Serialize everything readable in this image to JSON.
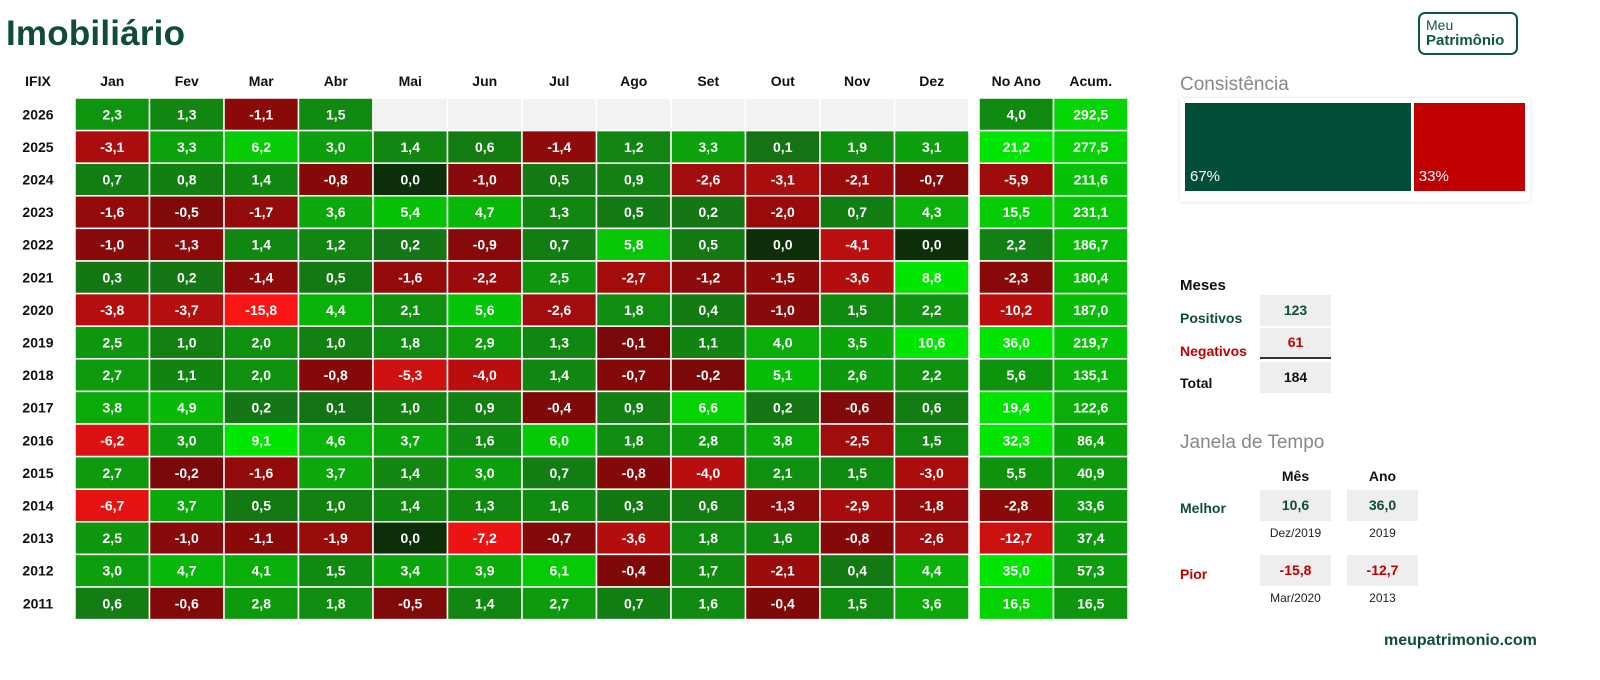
{
  "title": "Imobiliário",
  "logo": {
    "line1": "Meu",
    "line2": "Patrimônio"
  },
  "chart_data": {
    "type": "heatmap",
    "corner_label": "IFIX",
    "columns": [
      "Jan",
      "Fev",
      "Mar",
      "Abr",
      "Mai",
      "Jun",
      "Jul",
      "Ago",
      "Set",
      "Out",
      "Nov",
      "Dez"
    ],
    "summary_columns": [
      "No Ano",
      "Acum."
    ],
    "rows": [
      {
        "year": "2026",
        "values": [
          "2,3",
          "1,3",
          "-1,1",
          "1,5",
          null,
          null,
          null,
          null,
          null,
          null,
          null,
          null
        ],
        "no_ano": "4,0",
        "acum": "292,5"
      },
      {
        "year": "2025",
        "values": [
          "-3,1",
          "3,3",
          "6,2",
          "3,0",
          "1,4",
          "0,6",
          "-1,4",
          "1,2",
          "3,3",
          "0,1",
          "1,9",
          "3,1"
        ],
        "no_ano": "21,2",
        "acum": "277,5"
      },
      {
        "year": "2024",
        "values": [
          "0,7",
          "0,8",
          "1,4",
          "-0,8",
          "0,0",
          "-1,0",
          "0,5",
          "0,9",
          "-2,6",
          "-3,1",
          "-2,1",
          "-0,7"
        ],
        "no_ano": "-5,9",
        "acum": "211,6"
      },
      {
        "year": "2023",
        "values": [
          "-1,6",
          "-0,5",
          "-1,7",
          "3,6",
          "5,4",
          "4,7",
          "1,3",
          "0,5",
          "0,2",
          "-2,0",
          "0,7",
          "4,3"
        ],
        "no_ano": "15,5",
        "acum": "231,1"
      },
      {
        "year": "2022",
        "values": [
          "-1,0",
          "-1,3",
          "1,4",
          "1,2",
          "0,2",
          "-0,9",
          "0,7",
          "5,8",
          "0,5",
          "0,0",
          "-4,1",
          "0,0"
        ],
        "no_ano": "2,2",
        "acum": "186,7"
      },
      {
        "year": "2021",
        "values": [
          "0,3",
          "0,2",
          "-1,4",
          "0,5",
          "-1,6",
          "-2,2",
          "2,5",
          "-2,7",
          "-1,2",
          "-1,5",
          "-3,6",
          "8,8"
        ],
        "no_ano": "-2,3",
        "acum": "180,4"
      },
      {
        "year": "2020",
        "values": [
          "-3,8",
          "-3,7",
          "-15,8",
          "4,4",
          "2,1",
          "5,6",
          "-2,6",
          "1,8",
          "0,4",
          "-1,0",
          "1,5",
          "2,2"
        ],
        "no_ano": "-10,2",
        "acum": "187,0"
      },
      {
        "year": "2019",
        "values": [
          "2,5",
          "1,0",
          "2,0",
          "1,0",
          "1,8",
          "2,9",
          "1,3",
          "-0,1",
          "1,1",
          "4,0",
          "3,5",
          "10,6"
        ],
        "no_ano": "36,0",
        "acum": "219,7"
      },
      {
        "year": "2018",
        "values": [
          "2,7",
          "1,1",
          "2,0",
          "-0,8",
          "-5,3",
          "-4,0",
          "1,4",
          "-0,7",
          "-0,2",
          "5,1",
          "2,6",
          "2,2"
        ],
        "no_ano": "5,6",
        "acum": "135,1"
      },
      {
        "year": "2017",
        "values": [
          "3,8",
          "4,9",
          "0,2",
          "0,1",
          "1,0",
          "0,9",
          "-0,4",
          "0,9",
          "6,6",
          "0,2",
          "-0,6",
          "0,6"
        ],
        "no_ano": "19,4",
        "acum": "122,6"
      },
      {
        "year": "2016",
        "values": [
          "-6,2",
          "3,0",
          "9,1",
          "4,6",
          "3,7",
          "1,6",
          "6,0",
          "1,8",
          "2,8",
          "3,8",
          "-2,5",
          "1,5"
        ],
        "no_ano": "32,3",
        "acum": "86,4"
      },
      {
        "year": "2015",
        "values": [
          "2,7",
          "-0,2",
          "-1,6",
          "3,7",
          "1,4",
          "3,0",
          "0,7",
          "-0,8",
          "-4,0",
          "2,1",
          "1,5",
          "-3,0"
        ],
        "no_ano": "5,5",
        "acum": "40,9"
      },
      {
        "year": "2014",
        "values": [
          "-6,7",
          "3,7",
          "0,5",
          "1,0",
          "1,4",
          "1,3",
          "1,6",
          "0,3",
          "0,6",
          "-1,3",
          "-2,9",
          "-1,8"
        ],
        "no_ano": "-2,8",
        "acum": "33,6"
      },
      {
        "year": "2013",
        "values": [
          "2,5",
          "-1,0",
          "-1,1",
          "-1,9",
          "0,0",
          "-7,2",
          "-0,7",
          "-3,6",
          "1,8",
          "1,6",
          "-0,8",
          "-2,6"
        ],
        "no_ano": "-12,7",
        "acum": "37,4"
      },
      {
        "year": "2012",
        "values": [
          "3,0",
          "4,7",
          "4,1",
          "1,5",
          "3,4",
          "3,9",
          "6,1",
          "-0,4",
          "1,7",
          "-2,1",
          "0,4",
          "4,4"
        ],
        "no_ano": "35,0",
        "acum": "57,3"
      },
      {
        "year": "2011",
        "values": [
          "0,6",
          "-0,6",
          "2,8",
          "1,8",
          "-0,5",
          "1,4",
          "2,7",
          "0,7",
          "1,6",
          "-0,4",
          "1,5",
          "3,6"
        ],
        "no_ano": "16,5",
        "acum": "16,5"
      }
    ],
    "colors": {
      "positive": "#1fa81f",
      "negative": "#9e0b0b",
      "empty": "#f2f2f2",
      "zero": "#0c2e08"
    }
  },
  "consistencia": {
    "title": "Consistência",
    "positive": {
      "value": 67,
      "label": "67%",
      "color": "#004d38"
    },
    "negative": {
      "value": 33,
      "label": "33%",
      "color": "#c00000"
    }
  },
  "meses": {
    "title": "Meses",
    "positivos_label": "Positivos",
    "positivos": "123",
    "negativos_label": "Negativos",
    "negativos": "61",
    "total_label": "Total",
    "total": "184"
  },
  "janela": {
    "title": "Janela de Tempo",
    "col_mes": "Mês",
    "col_ano": "Ano",
    "melhor_label": "Melhor",
    "melhor_mes": "10,6",
    "melhor_mes_date": "Dez/2019",
    "melhor_ano": "36,0",
    "melhor_ano_date": "2019",
    "pior_label": "Pior",
    "pior_mes": "-15,8",
    "pior_mes_date": "Mar/2020",
    "pior_ano": "-12,7",
    "pior_ano_date": "2013"
  },
  "site": "meupatrimonio.com"
}
